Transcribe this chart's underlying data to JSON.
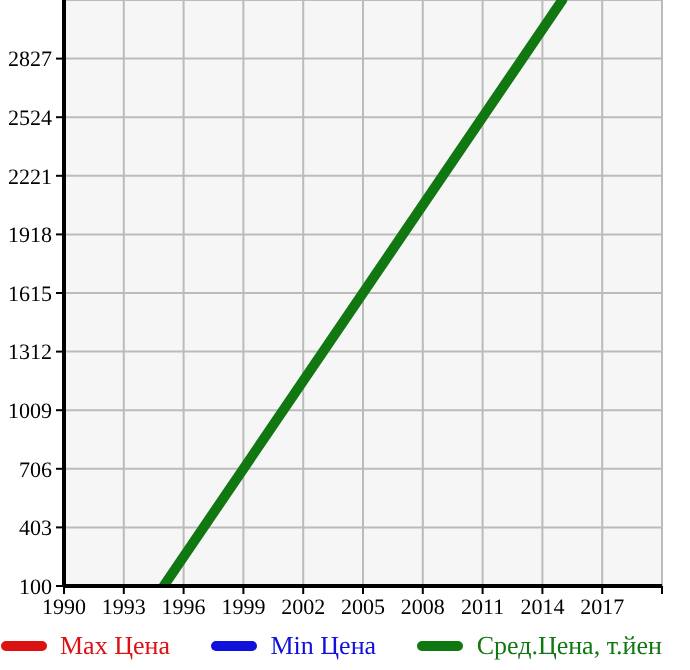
{
  "chart_data": {
    "type": "line",
    "x": [
      1995,
      2015
    ],
    "series": [
      {
        "name": "Max Цена",
        "color": "#dd1111",
        "values": [
          null,
          null
        ]
      },
      {
        "name": "Min Цена",
        "color": "#1111dd",
        "values": [
          null,
          null
        ]
      },
      {
        "name": "Сред.Цена, т.йен",
        "color": "#117711",
        "values": [
          100,
          3130
        ]
      }
    ],
    "xlim": [
      1990,
      2020
    ],
    "xticks": [
      1990,
      1993,
      1996,
      1999,
      2002,
      2005,
      2008,
      2011,
      2014,
      2017,
      {
        "value": 2020,
        "label": null
      }
    ],
    "ylim": [
      100,
      3130
    ],
    "yticks": [
      100,
      403,
      706,
      1009,
      1312,
      1615,
      1918,
      2221,
      2524,
      2827
    ],
    "grid": true,
    "legend": "bottom",
    "marker": "none",
    "line_style": "solid"
  }
}
